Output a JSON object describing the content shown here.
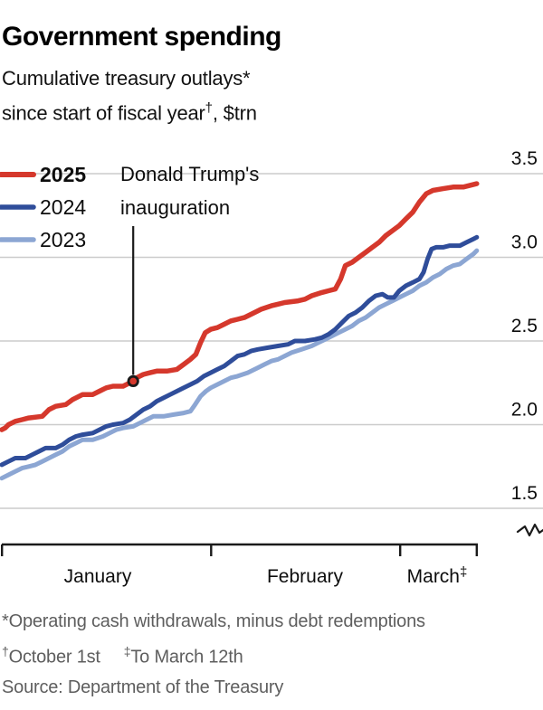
{
  "header": {
    "tag_color": "#000000",
    "title": "Government spending",
    "subtitle_line1": "Cumulative treasury outlays*",
    "subtitle_line2_pre": "since start of fiscal year",
    "subtitle_line2_sup": "†",
    "subtitle_line2_post": ", $trn"
  },
  "chart_data": {
    "type": "line",
    "title": "Cumulative treasury outlays since start of fiscal year, $trn",
    "x_axis": {
      "unit": "days since January 1st",
      "range": [
        0,
        70.5
      ],
      "tick_days": [
        0,
        31,
        59,
        70.5
      ],
      "month_labels": [
        "January",
        "February",
        "March"
      ],
      "march_sup": "‡"
    },
    "y_axis": {
      "range": [
        1.5,
        3.5
      ],
      "ticks": [
        3.5,
        3.0,
        2.5,
        2.0,
        1.5
      ],
      "tick_labels": [
        "3.5",
        "3.0",
        "2.5",
        "2.0",
        "1.5"
      ],
      "grid": true,
      "axis_break": true,
      "side": "right"
    },
    "colors": {
      "red_2025": "#d5382c",
      "navy_2024": "#2f4d9a",
      "lightblue_2023": "#8ca6d3",
      "gridline": "#cccccc",
      "axis": "#1a1a1a"
    },
    "legend": [
      {
        "label": "2025",
        "color": "#d5382c",
        "bold": true
      },
      {
        "label": "2024",
        "color": "#2f4d9a",
        "bold": false
      },
      {
        "label": "2023",
        "color": "#8ca6d3",
        "bold": false
      }
    ],
    "annotation": {
      "line1": "Donald Trump's",
      "line2": "inauguration",
      "marker_day": 19.5,
      "marker_value": 2.26
    },
    "series": [
      {
        "name": "2025",
        "color": "#d5382c",
        "width": 5.5,
        "points": [
          [
            0,
            1.97
          ],
          [
            0.5,
            1.98
          ],
          [
            1,
            2.0
          ],
          [
            2,
            2.02
          ],
          [
            3,
            2.03
          ],
          [
            4,
            2.04
          ],
          [
            6,
            2.05
          ],
          [
            7,
            2.09
          ],
          [
            8,
            2.11
          ],
          [
            9.5,
            2.12
          ],
          [
            10.5,
            2.15
          ],
          [
            11,
            2.16
          ],
          [
            12,
            2.18
          ],
          [
            13.5,
            2.18
          ],
          [
            14.5,
            2.2
          ],
          [
            15.5,
            2.22
          ],
          [
            16.5,
            2.23
          ],
          [
            18,
            2.23
          ],
          [
            19,
            2.25
          ],
          [
            20,
            2.28
          ],
          [
            21,
            2.3
          ],
          [
            22,
            2.31
          ],
          [
            23,
            2.32
          ],
          [
            24.5,
            2.32
          ],
          [
            26,
            2.33
          ],
          [
            27,
            2.36
          ],
          [
            28,
            2.39
          ],
          [
            28.8,
            2.42
          ],
          [
            29.5,
            2.49
          ],
          [
            30.2,
            2.55
          ],
          [
            31,
            2.57
          ],
          [
            32,
            2.58
          ],
          [
            33,
            2.6
          ],
          [
            34,
            2.62
          ],
          [
            35,
            2.63
          ],
          [
            36,
            2.64
          ],
          [
            37.5,
            2.67
          ],
          [
            38.5,
            2.69
          ],
          [
            40,
            2.71
          ],
          [
            41,
            2.72
          ],
          [
            42,
            2.73
          ],
          [
            44,
            2.74
          ],
          [
            45,
            2.75
          ],
          [
            46,
            2.77
          ],
          [
            47.5,
            2.79
          ],
          [
            48.5,
            2.8
          ],
          [
            49.5,
            2.81
          ],
          [
            50.3,
            2.87
          ],
          [
            51,
            2.95
          ],
          [
            52,
            2.97
          ],
          [
            53,
            3.0
          ],
          [
            54,
            3.03
          ],
          [
            55,
            3.06
          ],
          [
            56,
            3.09
          ],
          [
            57,
            3.13
          ],
          [
            58,
            3.16
          ],
          [
            59,
            3.19
          ],
          [
            60,
            3.23
          ],
          [
            61,
            3.27
          ],
          [
            62,
            3.33
          ],
          [
            63,
            3.38
          ],
          [
            64,
            3.4
          ],
          [
            65.5,
            3.41
          ],
          [
            67,
            3.42
          ],
          [
            68.5,
            3.42
          ],
          [
            69.5,
            3.43
          ],
          [
            70.5,
            3.44
          ]
        ]
      },
      {
        "name": "2024",
        "color": "#2f4d9a",
        "width": 5,
        "points": [
          [
            0,
            1.76
          ],
          [
            1,
            1.78
          ],
          [
            2,
            1.8
          ],
          [
            3.5,
            1.8
          ],
          [
            4.5,
            1.82
          ],
          [
            5.5,
            1.84
          ],
          [
            6.5,
            1.86
          ],
          [
            8,
            1.86
          ],
          [
            9,
            1.88
          ],
          [
            10,
            1.91
          ],
          [
            11,
            1.93
          ],
          [
            12,
            1.94
          ],
          [
            13.5,
            1.95
          ],
          [
            14.5,
            1.97
          ],
          [
            15.5,
            1.99
          ],
          [
            16.5,
            2.0
          ],
          [
            18,
            2.01
          ],
          [
            19,
            2.03
          ],
          [
            20,
            2.06
          ],
          [
            21,
            2.09
          ],
          [
            22,
            2.11
          ],
          [
            23,
            2.14
          ],
          [
            24,
            2.16
          ],
          [
            25,
            2.18
          ],
          [
            26,
            2.2
          ],
          [
            27,
            2.22
          ],
          [
            28,
            2.24
          ],
          [
            29,
            2.26
          ],
          [
            30,
            2.29
          ],
          [
            31,
            2.31
          ],
          [
            32,
            2.33
          ],
          [
            33,
            2.35
          ],
          [
            34,
            2.38
          ],
          [
            35,
            2.41
          ],
          [
            36,
            2.42
          ],
          [
            37,
            2.44
          ],
          [
            38,
            2.45
          ],
          [
            39.5,
            2.46
          ],
          [
            41,
            2.47
          ],
          [
            42.5,
            2.48
          ],
          [
            43.5,
            2.5
          ],
          [
            45,
            2.5
          ],
          [
            46.5,
            2.51
          ],
          [
            47.5,
            2.52
          ],
          [
            48.5,
            2.54
          ],
          [
            49.5,
            2.57
          ],
          [
            50.5,
            2.61
          ],
          [
            51.5,
            2.65
          ],
          [
            52.5,
            2.67
          ],
          [
            53.5,
            2.7
          ],
          [
            54.5,
            2.74
          ],
          [
            55.5,
            2.77
          ],
          [
            56.5,
            2.78
          ],
          [
            57.3,
            2.76
          ],
          [
            58.2,
            2.76
          ],
          [
            59,
            2.8
          ],
          [
            60,
            2.83
          ],
          [
            61,
            2.85
          ],
          [
            62,
            2.87
          ],
          [
            62.6,
            2.91
          ],
          [
            63.2,
            2.99
          ],
          [
            63.8,
            3.05
          ],
          [
            64.5,
            3.06
          ],
          [
            65.5,
            3.06
          ],
          [
            66.5,
            3.07
          ],
          [
            68,
            3.07
          ],
          [
            69,
            3.09
          ],
          [
            70,
            3.11
          ],
          [
            70.5,
            3.12
          ]
        ]
      },
      {
        "name": "2023",
        "color": "#8ca6d3",
        "width": 5,
        "points": [
          [
            0,
            1.68
          ],
          [
            1,
            1.7
          ],
          [
            2,
            1.72
          ],
          [
            3,
            1.74
          ],
          [
            4,
            1.75
          ],
          [
            5,
            1.76
          ],
          [
            6,
            1.78
          ],
          [
            7,
            1.8
          ],
          [
            8,
            1.82
          ],
          [
            9,
            1.84
          ],
          [
            10,
            1.87
          ],
          [
            11,
            1.89
          ],
          [
            12,
            1.91
          ],
          [
            13.5,
            1.91
          ],
          [
            15,
            1.93
          ],
          [
            16,
            1.95
          ],
          [
            17,
            1.97
          ],
          [
            18,
            1.98
          ],
          [
            19.5,
            1.99
          ],
          [
            20.5,
            2.01
          ],
          [
            21.5,
            2.03
          ],
          [
            22.5,
            2.05
          ],
          [
            24,
            2.05
          ],
          [
            25.5,
            2.06
          ],
          [
            27,
            2.07
          ],
          [
            28,
            2.08
          ],
          [
            28.7,
            2.12
          ],
          [
            29.5,
            2.17
          ],
          [
            30.3,
            2.2
          ],
          [
            31,
            2.22
          ],
          [
            32,
            2.24
          ],
          [
            33,
            2.26
          ],
          [
            34,
            2.28
          ],
          [
            35,
            2.29
          ],
          [
            36.5,
            2.31
          ],
          [
            38,
            2.34
          ],
          [
            39,
            2.36
          ],
          [
            40,
            2.38
          ],
          [
            41,
            2.39
          ],
          [
            42,
            2.41
          ],
          [
            43,
            2.43
          ],
          [
            44.5,
            2.45
          ],
          [
            46,
            2.47
          ],
          [
            47,
            2.49
          ],
          [
            48,
            2.51
          ],
          [
            49,
            2.53
          ],
          [
            50,
            2.55
          ],
          [
            51,
            2.57
          ],
          [
            52,
            2.59
          ],
          [
            53,
            2.62
          ],
          [
            54,
            2.64
          ],
          [
            55,
            2.67
          ],
          [
            56,
            2.7
          ],
          [
            57,
            2.72
          ],
          [
            58,
            2.74
          ],
          [
            59,
            2.76
          ],
          [
            60,
            2.78
          ],
          [
            61,
            2.8
          ],
          [
            62,
            2.83
          ],
          [
            63,
            2.85
          ],
          [
            64,
            2.88
          ],
          [
            65,
            2.9
          ],
          [
            66,
            2.93
          ],
          [
            67,
            2.95
          ],
          [
            68,
            2.96
          ],
          [
            69,
            2.99
          ],
          [
            70,
            3.02
          ],
          [
            70.5,
            3.04
          ]
        ]
      }
    ]
  },
  "footnotes": {
    "line1": "*Operating cash withdrawals, minus debt redemptions",
    "line2a_sup": "†",
    "line2a": "October 1st",
    "line2b_sup": "‡",
    "line2b": "To March 12th",
    "source": "Source: Department of the Treasury"
  }
}
